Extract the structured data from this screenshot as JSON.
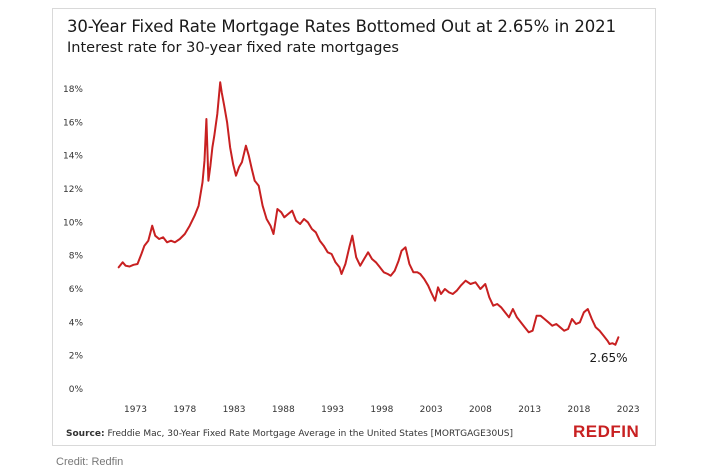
{
  "chart_data": {
    "type": "line",
    "title": "30-Year Fixed Rate Mortgage Rates Bottomed Out at 2.65% in 2021",
    "subtitle": "Interest rate for 30-year fixed rate mortgages",
    "xlabel": "",
    "ylabel": "",
    "xlim": [
      1969.5,
      2024.5
    ],
    "ylim": [
      0,
      18.6
    ],
    "x_ticks": [
      1973,
      1978,
      1983,
      1988,
      1993,
      1998,
      2003,
      2008,
      2013,
      2018,
      2023
    ],
    "y_ticks": [
      0,
      2,
      4,
      6,
      8,
      10,
      12,
      14,
      16,
      18
    ],
    "y_tick_labels": [
      "0%",
      "2%",
      "4%",
      "6%",
      "8%",
      "10%",
      "12%",
      "14%",
      "16%",
      "18%"
    ],
    "grid": "none",
    "legend": "none",
    "series": [
      {
        "color": "#c82021",
        "x": [
          1971.3,
          1971.7,
          1972.0,
          1972.4,
          1972.8,
          1973.2,
          1973.6,
          1973.9,
          1974.3,
          1974.7,
          1975.0,
          1975.4,
          1975.8,
          1976.2,
          1976.6,
          1977.0,
          1977.5,
          1978.0,
          1978.5,
          1979.0,
          1979.4,
          1979.8,
          1980.0,
          1980.2,
          1980.4,
          1980.6,
          1980.8,
          1981.0,
          1981.3,
          1981.6,
          1981.75,
          1982.0,
          1982.3,
          1982.6,
          1982.9,
          1983.2,
          1983.5,
          1983.8,
          1984.2,
          1984.5,
          1984.8,
          1985.1,
          1985.5,
          1985.9,
          1986.3,
          1986.7,
          1987.0,
          1987.4,
          1987.8,
          1988.1,
          1988.5,
          1988.9,
          1989.3,
          1989.7,
          1990.1,
          1990.5,
          1990.9,
          1991.3,
          1991.7,
          1992.1,
          1992.5,
          1992.9,
          1993.3,
          1993.7,
          1993.9,
          1994.3,
          1994.7,
          1995.0,
          1995.4,
          1995.8,
          1996.2,
          1996.6,
          1997.0,
          1997.4,
          1997.8,
          1998.2,
          1998.6,
          1998.9,
          1999.3,
          1999.7,
          2000.0,
          2000.4,
          2000.8,
          2001.2,
          2001.6,
          2001.9,
          2002.3,
          2002.7,
          2003.0,
          2003.4,
          2003.7,
          2004.0,
          2004.4,
          2004.8,
          2005.2,
          2005.6,
          2006.0,
          2006.5,
          2007.0,
          2007.5,
          2008.0,
          2008.5,
          2008.9,
          2009.3,
          2009.7,
          2010.1,
          2010.5,
          2010.9,
          2011.3,
          2011.7,
          2012.1,
          2012.5,
          2012.9,
          2013.3,
          2013.7,
          2014.1,
          2014.5,
          2014.9,
          2015.3,
          2015.7,
          2016.1,
          2016.5,
          2016.9,
          2017.3,
          2017.7,
          2018.1,
          2018.5,
          2018.9,
          2019.3,
          2019.7,
          2020.1,
          2020.5,
          2020.9,
          2021.1,
          2021.4,
          2021.7,
          2022.0
        ],
        "values": [
          7.3,
          7.6,
          7.4,
          7.35,
          7.45,
          7.5,
          8.1,
          8.6,
          8.9,
          9.8,
          9.2,
          9.0,
          9.1,
          8.8,
          8.9,
          8.8,
          9.0,
          9.3,
          9.8,
          10.4,
          11.0,
          12.4,
          13.7,
          16.2,
          12.5,
          13.4,
          14.5,
          15.2,
          16.5,
          18.4,
          17.8,
          17.0,
          16.0,
          14.5,
          13.5,
          12.8,
          13.3,
          13.6,
          14.6,
          14.0,
          13.2,
          12.5,
          12.2,
          11.0,
          10.2,
          9.8,
          9.3,
          10.8,
          10.6,
          10.3,
          10.5,
          10.7,
          10.1,
          9.9,
          10.2,
          10.0,
          9.6,
          9.4,
          8.9,
          8.6,
          8.2,
          8.1,
          7.6,
          7.3,
          6.9,
          7.5,
          8.5,
          9.2,
          7.9,
          7.4,
          7.8,
          8.2,
          7.8,
          7.6,
          7.3,
          7.0,
          6.9,
          6.8,
          7.1,
          7.7,
          8.3,
          8.5,
          7.5,
          7.0,
          7.0,
          6.9,
          6.6,
          6.2,
          5.8,
          5.3,
          6.1,
          5.7,
          6.0,
          5.8,
          5.7,
          5.9,
          6.2,
          6.5,
          6.3,
          6.4,
          6.0,
          6.3,
          5.5,
          5.0,
          5.1,
          4.9,
          4.6,
          4.3,
          4.8,
          4.3,
          4.0,
          3.7,
          3.4,
          3.5,
          4.4,
          4.4,
          4.2,
          4.0,
          3.8,
          3.9,
          3.7,
          3.5,
          3.6,
          4.2,
          3.9,
          4.0,
          4.6,
          4.8,
          4.2,
          3.7,
          3.5,
          3.2,
          2.9,
          2.7,
          2.75,
          2.65,
          3.1
        ]
      }
    ],
    "annotations": [
      {
        "text": "2.65%",
        "x": 2021.0,
        "y": 2.65
      }
    ]
  },
  "footer": {
    "source_label": "Source:",
    "source_text": "Freddie Mac, 30-Year Fixed Rate Mortgage Average in the United States [MORTGAGE30US]",
    "logo_text": "REDFIN"
  },
  "credit": "Credit: Redfin"
}
